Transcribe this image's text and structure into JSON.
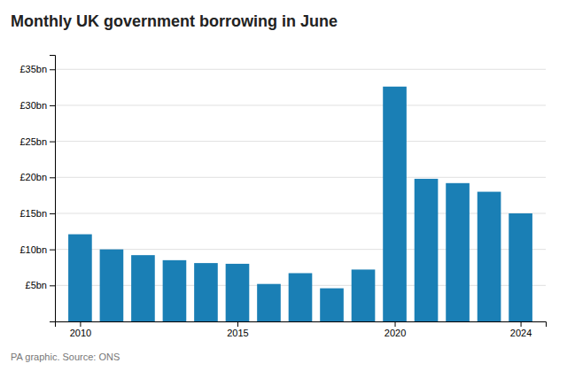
{
  "chart_data": {
    "type": "bar",
    "title": "Monthly UK government borrowing in June",
    "source": "PA graphic. Source: ONS",
    "x": [
      2010,
      2011,
      2012,
      2013,
      2014,
      2015,
      2016,
      2017,
      2018,
      2019,
      2020,
      2021,
      2022,
      2023,
      2024
    ],
    "values": [
      12.1,
      10.0,
      9.2,
      8.5,
      8.1,
      8.0,
      5.2,
      6.7,
      4.6,
      7.2,
      32.6,
      19.8,
      19.2,
      18.0,
      15.0
    ],
    "color": "#1a7fb5",
    "xlim": [
      2009.2,
      2024.8
    ],
    "xticks": [
      2010,
      2015,
      2020,
      2024
    ],
    "ylim": [
      0,
      37
    ],
    "yticks": [
      {
        "value": 5,
        "label": "£5bn"
      },
      {
        "value": 10,
        "label": "£10bn"
      },
      {
        "value": 15,
        "label": "£15bn"
      },
      {
        "value": 20,
        "label": "£20bn"
      },
      {
        "value": 25,
        "label": "£25bn"
      },
      {
        "value": 30,
        "label": "£30bn"
      },
      {
        "value": 35,
        "label": "£35bn"
      }
    ],
    "grid": true
  }
}
